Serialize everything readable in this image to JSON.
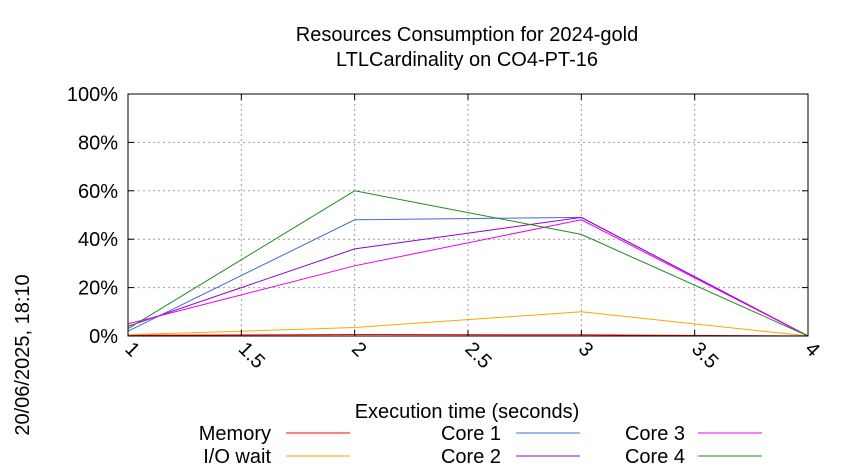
{
  "chart_data": {
    "type": "line",
    "title_lines": [
      "Resources Consumption for 2024-gold",
      "LTLCardinality on CO4-PT-16"
    ],
    "xlabel": "Execution time (seconds)",
    "ylabel": "",
    "side_label": "20/06/2025, 18:10",
    "xlim": [
      1,
      4
    ],
    "ylim": [
      0,
      100
    ],
    "x_ticks": [
      1,
      1.5,
      2,
      2.5,
      3,
      3.5,
      4
    ],
    "x_tick_labels": [
      "1",
      "1.5",
      "2",
      "2.5",
      "3",
      "3.5",
      "4"
    ],
    "y_ticks": [
      0,
      20,
      40,
      60,
      80,
      100
    ],
    "y_tick_labels": [
      "0%",
      "20%",
      "40%",
      "60%",
      "80%",
      "100%"
    ],
    "grid": true,
    "legend_position": "bottom",
    "series": [
      {
        "name": "Memory",
        "color": "#ff0000",
        "x": [
          1,
          2,
          3,
          4
        ],
        "y": [
          0.3,
          0.6,
          0.5,
          0
        ]
      },
      {
        "name": "I/O wait",
        "color": "#ffa500",
        "x": [
          1,
          2,
          3,
          4
        ],
        "y": [
          0.5,
          3.5,
          10,
          0
        ]
      },
      {
        "name": "Core 1",
        "color": "#4169e1",
        "x": [
          1,
          2,
          3,
          4
        ],
        "y": [
          2,
          48,
          49,
          0
        ]
      },
      {
        "name": "Core 2",
        "color": "#9400d3",
        "x": [
          1,
          2,
          3,
          4
        ],
        "y": [
          4,
          36,
          49,
          0
        ]
      },
      {
        "name": "Core 3",
        "color": "#ee00ee",
        "x": [
          1,
          2,
          3,
          4
        ],
        "y": [
          5,
          29,
          48,
          0
        ]
      },
      {
        "name": "Core 4",
        "color": "#228b22",
        "x": [
          1,
          2,
          3,
          4
        ],
        "y": [
          3,
          60,
          42,
          0
        ]
      }
    ]
  }
}
